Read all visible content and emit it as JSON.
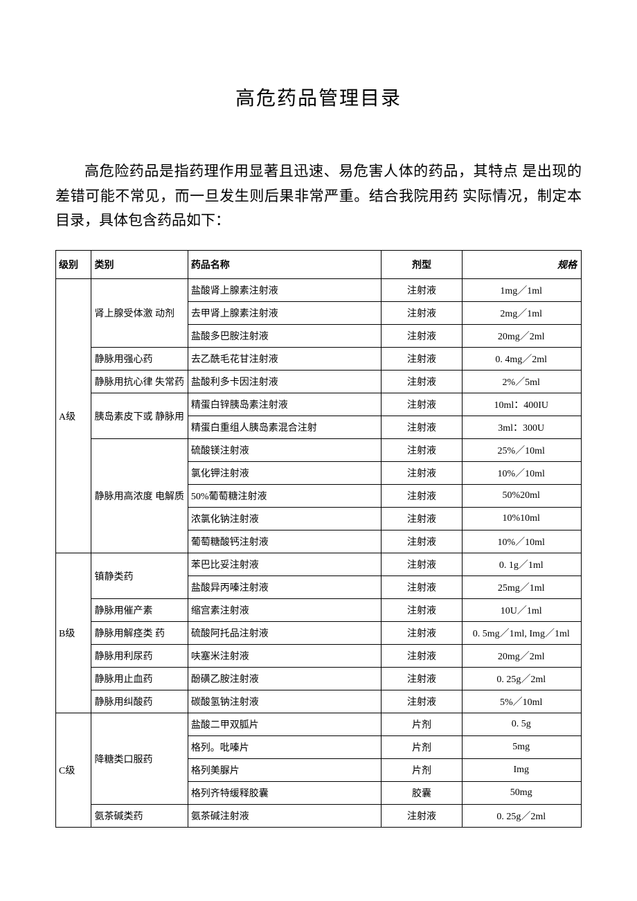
{
  "title": "高危药品管理目录",
  "intro": "高危险药品是指药理作用显著且迅速、易危害人体的药品，其特点 是出现的差错可能不常见，而一旦发生则后果非常严重。结合我院用药 实际情况，制定本目录，具体包含药品如下：",
  "table": {
    "columns": [
      "级别",
      "类别",
      "药品名称",
      "剂型",
      "规格"
    ],
    "colors": {
      "border": "#000000",
      "background": "#ffffff",
      "text": "#000000"
    },
    "rows": [
      {
        "level": "A级",
        "level_rowspan": 12,
        "category": "肾上腺受体激 动剂",
        "cat_rowspan": 3,
        "name": "盐酸肾上腺素注射液",
        "form": "注射液",
        "spec": "1mg／1ml"
      },
      {
        "name": "去甲肾上腺素注射液",
        "form": "注射液",
        "spec": "2mg／1ml"
      },
      {
        "name": "盐酸多巴胺注射液",
        "form": "注射液",
        "spec": "20mg／2ml"
      },
      {
        "category": "静脉用强心药",
        "cat_rowspan": 1,
        "name": "去乙酰毛花甘注射液",
        "form": "注射液",
        "spec": "0. 4mg／2ml"
      },
      {
        "category": "静脉用抗心律 失常药",
        "cat_rowspan": 1,
        "name": "盐酸利多卡因注射液",
        "form": "注射液",
        "spec": "2%／5ml"
      },
      {
        "category": "胰岛素皮下或 静脉用",
        "cat_rowspan": 2,
        "name": "精蛋白锌胰岛素注射液",
        "form": "注射液",
        "spec": "10ml：400IU"
      },
      {
        "name": "精蛋白重组人胰岛素混合注射",
        "form": "注射液",
        "spec": "3ml：300U"
      },
      {
        "category": "静脉用高浓度 电解质",
        "cat_rowspan": 5,
        "name": "硫酸镁注射液",
        "form": "注射液",
        "spec": "25%／10ml"
      },
      {
        "name": "氯化钾注射液",
        "form": "注射液",
        "spec": "10%／10ml"
      },
      {
        "name": "50%葡萄糖注射液",
        "form": "注射液",
        "spec": "50%20ml"
      },
      {
        "name": "浓氯化钠注射液",
        "form": "注射液",
        "spec": "10%10ml"
      },
      {
        "name": "葡萄糖酸钙注射液",
        "form": "注射液",
        "spec": "10%／10ml"
      },
      {
        "level": "B级",
        "level_rowspan": 7,
        "category": "镇静类药",
        "cat_rowspan": 2,
        "name": "苯巴比妥注射液",
        "form": "注射液",
        "spec": "0. 1g／1ml"
      },
      {
        "name": "盐酸异丙嗪注射液",
        "form": "注射液",
        "spec": "25mg／1ml"
      },
      {
        "category": "静脉用催产素",
        "cat_rowspan": 1,
        "name": "缩宫素注射液",
        "form": "注射液",
        "spec": "10U／1ml"
      },
      {
        "category": "静脉用解痉类 药",
        "cat_rowspan": 1,
        "name": "硫酸阿托品注射液",
        "form": "注射液",
        "spec": "0. 5mg／1ml, Img／1ml"
      },
      {
        "category": "静脉用利尿药",
        "cat_rowspan": 1,
        "name": "呋塞米注射液",
        "form": "注射液",
        "spec": "20mg／2ml"
      },
      {
        "category": "静脉用止血药",
        "cat_rowspan": 1,
        "name": "酚磺乙胺注射液",
        "form": "注射液",
        "spec": "0. 25g／2ml"
      },
      {
        "category": "静脉用纠酸药",
        "cat_rowspan": 1,
        "name": "碳酸氢钠注射液",
        "form": "注射液",
        "spec": "5%／10ml"
      },
      {
        "level": "C级",
        "level_rowspan": 5,
        "category": "降糖类口服药",
        "cat_rowspan": 4,
        "name": "盐酸二甲双胍片",
        "form": "片剂",
        "spec": "0. 5g"
      },
      {
        "name": "格列。吡嗪片",
        "form": "片剂",
        "spec": "5mg"
      },
      {
        "name": "格列美脲片",
        "form": "片剂",
        "spec": "Img"
      },
      {
        "name": "格列齐特缓释胶囊",
        "form": "胶囊",
        "spec": "50mg"
      },
      {
        "category": "氨茶碱类药",
        "cat_rowspan": 1,
        "name": "氨茶碱注射液",
        "form": "注射液",
        "spec": "0. 25g／2ml"
      }
    ]
  }
}
